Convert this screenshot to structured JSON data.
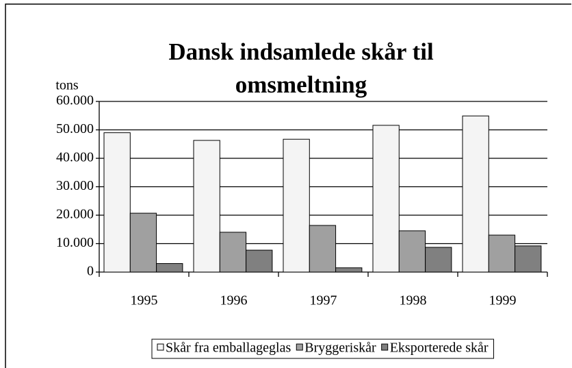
{
  "chart_data": {
    "type": "bar",
    "title": "Dansk indsamlede skår til omsmeltning",
    "y_label": "tons",
    "categories": [
      "1995",
      "1996",
      "1997",
      "1998",
      "1999"
    ],
    "series": [
      {
        "name": "Skår fra emballageglas",
        "color": "#f4f4f4",
        "values": [
          49000,
          46300,
          46700,
          51600,
          54900
        ]
      },
      {
        "name": "Bryggeriskår",
        "color": "#a0a0a0",
        "values": [
          20700,
          14000,
          16400,
          14500,
          13000
        ]
      },
      {
        "name": "Eksporterede skår",
        "color": "#808080",
        "values": [
          3000,
          7700,
          1500,
          8700,
          9200
        ]
      }
    ],
    "ylim": [
      0,
      60000
    ],
    "yticks": [
      0,
      {
        "value": 10000,
        "label": "10.000"
      },
      {
        "value": 20000,
        "label": "20.000"
      },
      {
        "value": 30000,
        "label": "30.000"
      },
      {
        "value": 40000,
        "label": "40.000"
      },
      {
        "value": 50000,
        "label": "50.000"
      },
      {
        "value": 60000,
        "label": "60.000"
      }
    ],
    "grid": true,
    "legend": "bottom"
  }
}
